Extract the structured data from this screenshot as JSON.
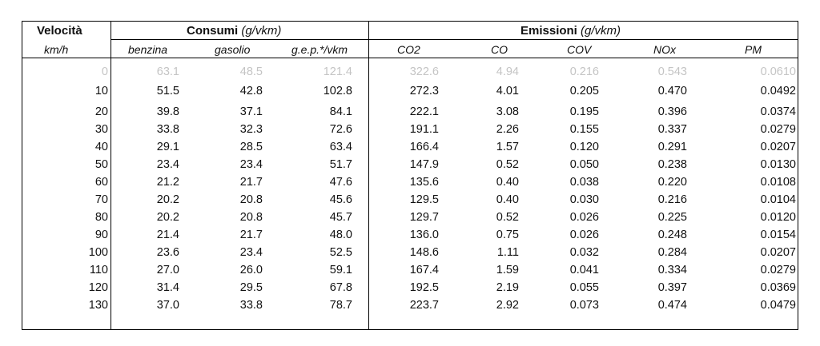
{
  "table": {
    "speed_header": "Velocità",
    "speed_unit": "km/h",
    "consumi_title": "Consumi",
    "consumi_unit": "(g/vkm)",
    "emissioni_title": "Emissioni",
    "emissioni_unit": "(g/vkm)",
    "columns": [
      "benzina",
      "gasolio",
      "g.e.p.*/vkm",
      "CO2",
      "CO",
      "COV",
      "NOx",
      "PM"
    ],
    "rows": [
      [
        "0",
        "63.1",
        "48.5",
        "121.4",
        "322.6",
        "4.94",
        "0.216",
        "0.543",
        "0.0610"
      ],
      [
        "10",
        "51.5",
        "42.8",
        "102.8",
        "272.3",
        "4.01",
        "0.205",
        "0.470",
        "0.0492"
      ],
      [
        "20",
        "39.8",
        "37.1",
        "84.1",
        "222.1",
        "3.08",
        "0.195",
        "0.396",
        "0.0374"
      ],
      [
        "30",
        "33.8",
        "32.3",
        "72.6",
        "191.1",
        "2.26",
        "0.155",
        "0.337",
        "0.0279"
      ],
      [
        "40",
        "29.1",
        "28.5",
        "63.4",
        "166.4",
        "1.57",
        "0.120",
        "0.291",
        "0.0207"
      ],
      [
        "50",
        "23.4",
        "23.4",
        "51.7",
        "147.9",
        "0.52",
        "0.050",
        "0.238",
        "0.0130"
      ],
      [
        "60",
        "21.2",
        "21.7",
        "47.6",
        "135.6",
        "0.40",
        "0.038",
        "0.220",
        "0.0108"
      ],
      [
        "70",
        "20.2",
        "20.8",
        "45.6",
        "129.5",
        "0.40",
        "0.030",
        "0.216",
        "0.0104"
      ],
      [
        "80",
        "20.2",
        "20.8",
        "45.7",
        "129.7",
        "0.52",
        "0.026",
        "0.225",
        "0.0120"
      ],
      [
        "90",
        "21.4",
        "21.7",
        "48.0",
        "136.0",
        "0.75",
        "0.026",
        "0.248",
        "0.0154"
      ],
      [
        "100",
        "23.6",
        "23.4",
        "52.5",
        "148.6",
        "1.11",
        "0.032",
        "0.284",
        "0.0207"
      ],
      [
        "110",
        "27.0",
        "26.0",
        "59.1",
        "167.4",
        "1.59",
        "0.041",
        "0.334",
        "0.0279"
      ],
      [
        "120",
        "31.4",
        "29.5",
        "67.8",
        "192.5",
        "2.19",
        "0.055",
        "0.397",
        "0.0369"
      ],
      [
        "130",
        "37.0",
        "33.8",
        "78.7",
        "223.7",
        "2.92",
        "0.073",
        "0.474",
        "0.0479"
      ]
    ]
  }
}
